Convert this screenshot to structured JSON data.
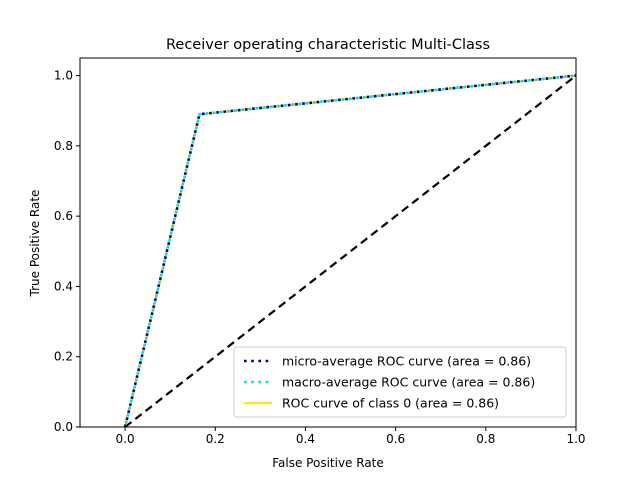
{
  "chart_data": {
    "type": "line",
    "title": "Receiver operating characteristic Multi-Class",
    "xlabel": "False Positive Rate",
    "ylabel": "True Positive Rate",
    "xlim": [
      -0.1,
      1.0
    ],
    "ylim": [
      0.0,
      1.05
    ],
    "xticks": [
      0.0,
      0.2,
      0.4,
      0.6,
      0.8,
      1.0
    ],
    "xtick_labels": [
      "0.0",
      "0.2",
      "0.4",
      "0.6",
      "0.8",
      "1.0"
    ],
    "yticks": [
      0.0,
      0.2,
      0.4,
      0.6,
      0.8,
      1.0
    ],
    "ytick_labels": [
      "0.0",
      "0.2",
      "0.4",
      "0.6",
      "0.8",
      "1.0"
    ],
    "grid": false,
    "legend_position": "lower-right",
    "series": [
      {
        "name": "micro-average ROC curve (area = 0.86)",
        "x": [
          0.0,
          0.165,
          1.0
        ],
        "y": [
          0.0,
          0.89,
          1.0
        ],
        "color": "#000080",
        "style": "dotted"
      },
      {
        "name": "macro-average ROC curve (area = 0.86)",
        "x": [
          0.0,
          0.165,
          1.0
        ],
        "y": [
          0.0,
          0.89,
          1.0
        ],
        "color": "#00d4ff",
        "style": "dotted"
      },
      {
        "name": "ROC curve of class 0 (area = 0.86)",
        "x": [
          0.0,
          0.165,
          1.0
        ],
        "y": [
          0.0,
          0.89,
          1.0
        ],
        "color": "#ffe619",
        "style": "solid"
      }
    ],
    "reference_line": {
      "x": [
        0.0,
        1.0
      ],
      "y": [
        0.0,
        1.0
      ],
      "color": "#000000",
      "style": "dashed"
    }
  }
}
